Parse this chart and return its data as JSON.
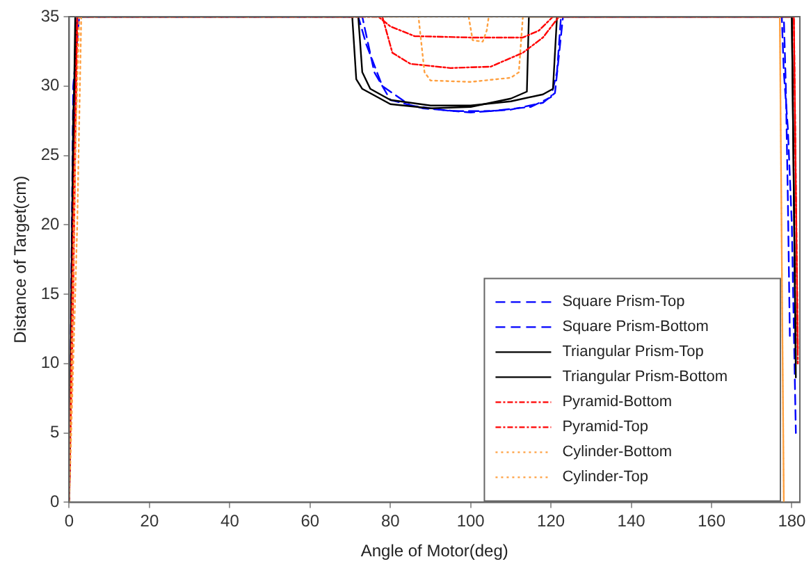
{
  "chart_data": {
    "type": "line",
    "xlabel": "Angle of Motor(deg)",
    "ylabel": "Distance of Target(cm)",
    "xlim": [
      0,
      182
    ],
    "xticks": [
      0,
      20,
      40,
      60,
      80,
      100,
      120,
      140,
      160,
      180
    ],
    "ylim": [
      0,
      35
    ],
    "yticks": [
      0,
      5,
      10,
      15,
      20,
      25,
      30,
      35
    ],
    "grid": false,
    "legend": "bottom right",
    "marker": "none",
    "series": [
      {
        "name": "Square Prism-Top",
        "color": "#0000ff",
        "line_style": "dashed",
        "x": [
          0,
          1.5,
          2,
          72,
          74,
          78,
          85,
          95,
          105,
          115,
          120,
          121.5,
          122.5,
          177.5,
          178,
          179,
          180,
          181
        ],
        "values": [
          0,
          33,
          35,
          35,
          33,
          30,
          28.6,
          28.2,
          28.2,
          28.5,
          29.2,
          31,
          35,
          35,
          31,
          27,
          20,
          5
        ]
      },
      {
        "name": "Square Prism-Bottom",
        "color": "#0000ff",
        "line_style": "dashed",
        "x": [
          0,
          1,
          2.5,
          73,
          76,
          80,
          88,
          100,
          110,
          118,
          121,
          123,
          178,
          178.5,
          179,
          179.5
        ],
        "values": [
          0,
          30,
          35,
          35,
          31,
          29,
          28.4,
          28.1,
          28.3,
          28.8,
          29.5,
          35,
          35,
          30,
          22,
          12
        ]
      },
      {
        "name": "Triangular Prism-Top",
        "color": "#000000",
        "line_style": "solid",
        "x": [
          0,
          1,
          1.5,
          70.5,
          71.5,
          73,
          80,
          90,
          100,
          110,
          114,
          114.5,
          180,
          181
        ],
        "values": [
          0,
          25,
          35,
          35,
          30.5,
          29.8,
          28.7,
          28.4,
          28.5,
          29.1,
          29.6,
          35,
          35,
          9
        ]
      },
      {
        "name": "Triangular Prism-Bottom",
        "color": "#000000",
        "line_style": "solid",
        "x": [
          0,
          1,
          2,
          72,
          73,
          75,
          80,
          90,
          100,
          110,
          118,
          120.5,
          121.5,
          180,
          181
        ],
        "values": [
          0,
          28,
          35,
          35,
          31,
          29.8,
          29,
          28.6,
          28.6,
          28.9,
          29.4,
          29.8,
          35,
          35,
          10
        ]
      },
      {
        "name": "Pyramid-Bottom",
        "color": "#ff0000",
        "line_style": "dashdot",
        "x": [
          0,
          1,
          2,
          78,
          80.5,
          85,
          95,
          105,
          113,
          118,
          122,
          180.5,
          181.5
        ],
        "values": [
          0,
          20,
          35,
          35,
          32.4,
          31.6,
          31.3,
          31.4,
          32.4,
          33.5,
          35,
          35,
          10
        ]
      },
      {
        "name": "Pyramid-Top",
        "color": "#ff0000",
        "line_style": "dashdot",
        "x": [
          0,
          1,
          2,
          77,
          80,
          86,
          100,
          113,
          117,
          120.5,
          180.5,
          181.5
        ],
        "values": [
          0,
          15,
          35,
          35,
          34.3,
          33.6,
          33.5,
          33.5,
          34,
          35,
          35,
          11
        ]
      },
      {
        "name": "Cylinder-Bottom",
        "color": "#ffa040",
        "line_style": "dotted",
        "x": [
          0,
          1.5,
          2.5,
          87,
          88.5,
          90,
          100,
          110,
          112,
          113,
          177,
          178
        ],
        "values": [
          0,
          25,
          35,
          35,
          31,
          30.4,
          30.3,
          30.6,
          31,
          35,
          35,
          0
        ]
      },
      {
        "name": "Cylinder-Top",
        "color": "#ffa040",
        "line_style": "dotted",
        "x": [
          0,
          2,
          3,
          99.5,
          100.5,
          103,
          104,
          104.5,
          177,
          178
        ],
        "values": [
          0,
          20,
          35,
          35,
          33.3,
          33.2,
          34,
          35,
          35,
          0
        ]
      }
    ]
  }
}
